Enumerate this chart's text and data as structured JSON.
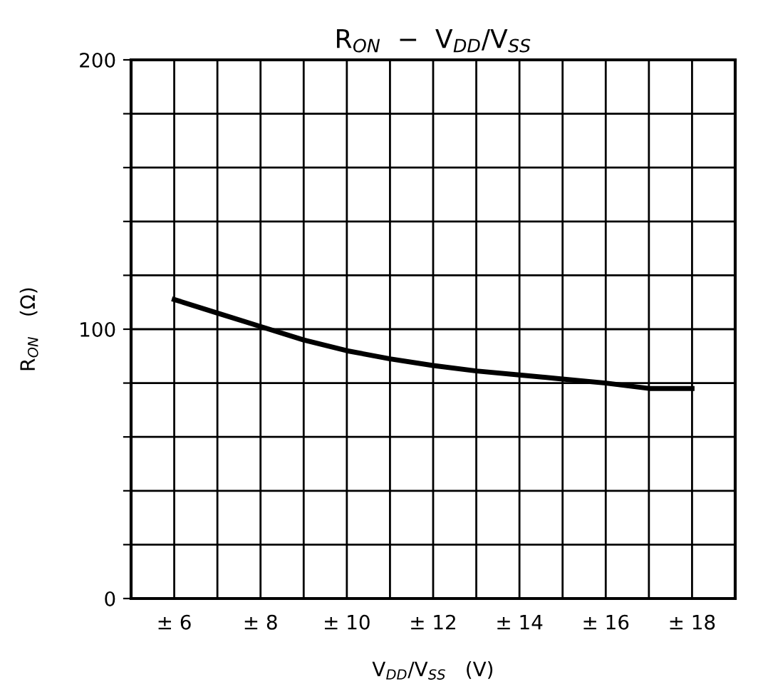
{
  "chart_data": {
    "type": "line",
    "title": "R$_{ON}$  −  V$_{DD}$/V$_{SS}$",
    "xlabel": "V$_{DD}$/V$_{SS}$   (V)",
    "ylabel": "R$_{ON}$   (Ω)",
    "x": [
      6,
      7,
      8,
      9,
      10,
      11,
      12,
      13,
      14,
      15,
      16,
      17,
      18
    ],
    "series": [
      {
        "color": "#000000",
        "values": [
          111,
          106,
          101,
          96,
          92,
          89,
          86.5,
          84.5,
          83,
          81.5,
          80,
          78,
          78
        ]
      }
    ],
    "xlim": [
      5,
      19
    ],
    "ylim": [
      0,
      200
    ],
    "xticks": [
      {
        "value": 5,
        "label": null
      },
      {
        "value": 6,
        "label": "± 6"
      },
      {
        "value": 7,
        "label": null
      },
      {
        "value": 8,
        "label": "± 8"
      },
      {
        "value": 9,
        "label": null
      },
      {
        "value": 10,
        "label": "± 10"
      },
      {
        "value": 11,
        "label": null
      },
      {
        "value": 12,
        "label": "± 12"
      },
      {
        "value": 13,
        "label": null
      },
      {
        "value": 14,
        "label": "± 14"
      },
      {
        "value": 15,
        "label": null
      },
      {
        "value": 16,
        "label": "± 16"
      },
      {
        "value": 17,
        "label": null
      },
      {
        "value": 18,
        "label": "± 18"
      },
      {
        "value": 19,
        "label": null
      }
    ],
    "yticks": [
      0,
      {
        "value": 20,
        "label": null
      },
      {
        "value": 40,
        "label": null
      },
      {
        "value": 60,
        "label": null
      },
      {
        "value": 80,
        "label": null
      },
      100,
      {
        "value": 120,
        "label": null
      },
      {
        "value": 140,
        "label": null
      },
      {
        "value": 160,
        "label": null
      },
      {
        "value": 180,
        "label": null
      },
      200
    ],
    "grid": true,
    "legend": false,
    "marker": "none",
    "line_style": "solid"
  }
}
